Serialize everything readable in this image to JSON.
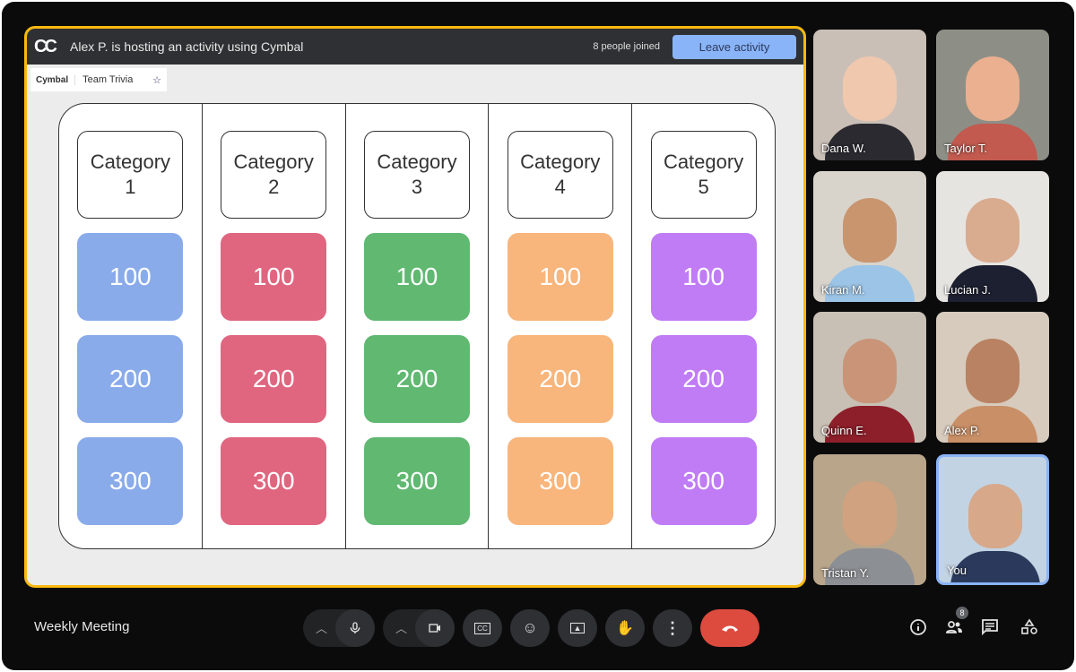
{
  "activity": {
    "logo": "CC",
    "host_text": "Alex P. is hosting an activity using Cymbal",
    "joined": "8 people joined",
    "leave_label": "Leave activity",
    "tab": {
      "brand": "Cymbal",
      "title": "Team Trivia",
      "star_icon": "star-icon"
    },
    "board": {
      "columns": [
        {
          "category": "Category 1",
          "color": "#8aabea",
          "values": [
            "100",
            "200",
            "300"
          ]
        },
        {
          "category": "Category 2",
          "color": "#e06680",
          "values": [
            "100",
            "200",
            "300"
          ]
        },
        {
          "category": "Category 3",
          "color": "#60b871",
          "values": [
            "100",
            "200",
            "300"
          ]
        },
        {
          "category": "Category 4",
          "color": "#f8b57c",
          "values": [
            "100",
            "200",
            "300"
          ]
        },
        {
          "category": "Category 5",
          "color": "#c07cf5",
          "values": [
            "100",
            "200",
            "300"
          ]
        }
      ]
    }
  },
  "participants": [
    {
      "name": "Dana W."
    },
    {
      "name": "Taylor T."
    },
    {
      "name": "Kiran M."
    },
    {
      "name": "Lucian J."
    },
    {
      "name": "Quinn E."
    },
    {
      "name": "Alex P."
    },
    {
      "name": "Tristan Y."
    },
    {
      "name": "You"
    }
  ],
  "meeting_title": "Weekly Meeting",
  "people_count": "8",
  "accent": "#f9b90f"
}
